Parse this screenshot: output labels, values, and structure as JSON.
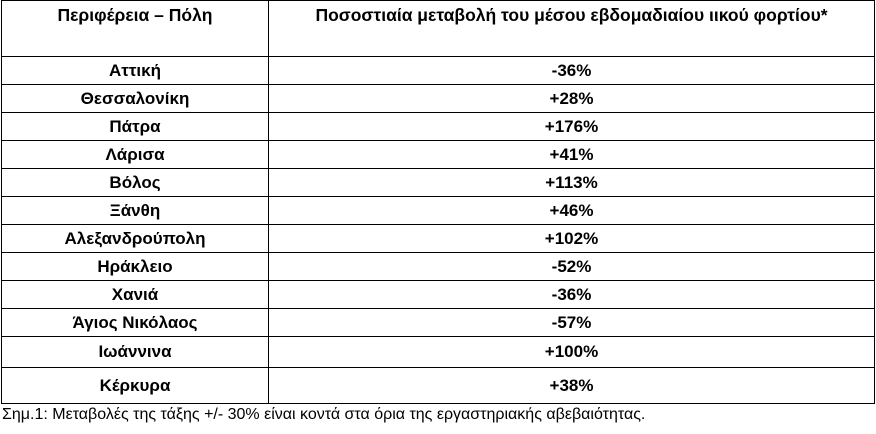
{
  "table": {
    "header": [
      "Περιφέρεια – Πόλη",
      "Ποσοστιαία μεταβολή του μέσου εβδομαδιαίου ιικού φορτίου*"
    ],
    "rows": [
      [
        "Αττική",
        "-36%"
      ],
      [
        "Θεσσαλονίκη",
        "+28%"
      ],
      [
        "Πάτρα",
        "+176%"
      ],
      [
        "Λάρισα",
        "+41%"
      ],
      [
        "Βόλος",
        "+113%"
      ],
      [
        "Ξάνθη",
        "+46%"
      ],
      [
        "Αλεξανδρούπολη",
        "+102%"
      ],
      [
        "Ηράκλειο",
        "-52%"
      ],
      [
        "Χανιά",
        "-36%"
      ],
      [
        "Άγιος Νικόλαος",
        "-57%"
      ],
      [
        "Ιωάννινα",
        "+100%"
      ],
      [
        "Κέρκυρα",
        "+38%"
      ]
    ]
  },
  "note": "Σημ.1: Μεταβολές της τάξης +/- 30% είναι κοντά στα όρια της εργαστηριακής αβεβαιότητας."
}
